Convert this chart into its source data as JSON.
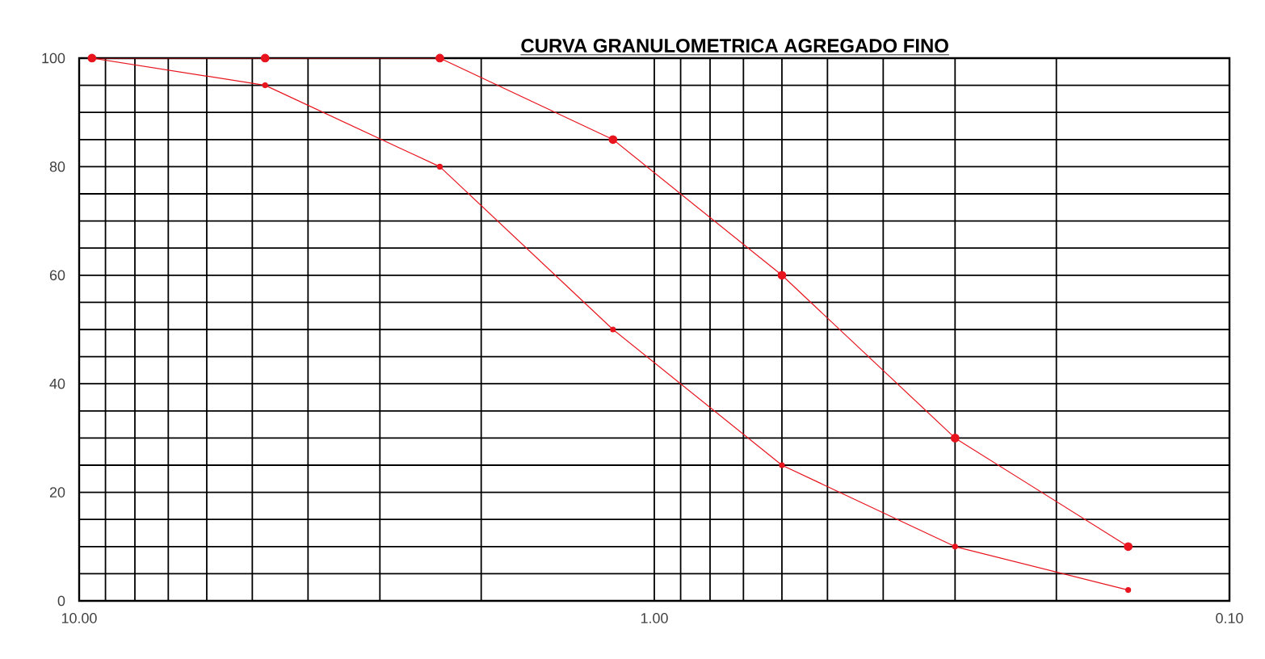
{
  "chart_data": {
    "type": "line",
    "title": "CURVA GRANULOMETRICA AGREGADO FINO",
    "x": [
      9.5,
      4.75,
      2.36,
      1.18,
      0.6,
      0.3,
      0.15
    ],
    "series": [
      {
        "color": "#e8141e",
        "values": [
          100,
          100,
          100,
          85,
          60,
          30,
          10
        ]
      },
      {
        "color": "#e8141e",
        "values": [
          100,
          95,
          80,
          50,
          25,
          10,
          2
        ]
      }
    ],
    "log": "x",
    "xlim": [
      10,
      0.1
    ],
    "xticks": [
      {
        "value": 10,
        "label": "10.00"
      },
      {
        "value": 1,
        "label": "1.00"
      },
      {
        "value": 0.1,
        "label": "0.10"
      }
    ],
    "ylim": [
      0,
      100
    ],
    "yticks": [
      0,
      20,
      40,
      60,
      80,
      100
    ],
    "grid": true,
    "marker": "circle",
    "line_style": "solid"
  }
}
